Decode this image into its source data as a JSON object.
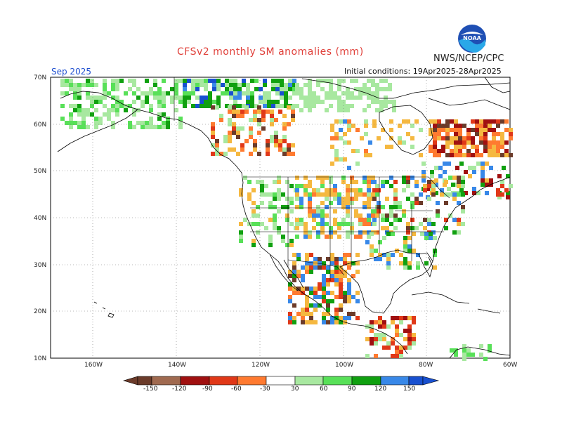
{
  "header": {
    "title": "CFSv2 monthly SM anomalies (mm)",
    "org": "NWS/NCEP/CPC",
    "month": "Sep 2025",
    "initial_conditions": "Initial conditions: 19Apr2025-28Apr2025",
    "logo_text": "NOAA"
  },
  "axes": {
    "lat_labels": [
      "70N",
      "60N",
      "50N",
      "40N",
      "30N",
      "20N",
      "10N"
    ],
    "lon_labels": [
      "160W",
      "140W",
      "120W",
      "100W",
      "80W",
      "60W"
    ]
  },
  "colorbar": {
    "labels": [
      "-150",
      "-120",
      "-90",
      "-60",
      "-30",
      "30",
      "60",
      "90",
      "120",
      "150"
    ],
    "colors": [
      "#6b3b2a",
      "#a06a50",
      "#a01010",
      "#e03818",
      "#ff7a30",
      "#f5b840",
      "#ffffff",
      "#a8e8a0",
      "#58e058",
      "#10a010",
      "#3888e8",
      "#1850d0"
    ]
  }
}
